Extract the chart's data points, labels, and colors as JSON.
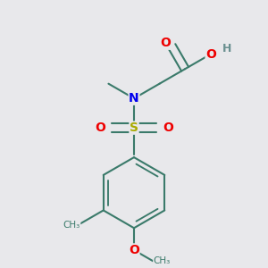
{
  "bg_color": "#e8e8eb",
  "atom_colors": {
    "C": "#3a7a6a",
    "H": "#6a9090",
    "N": "#0000ee",
    "O": "#ee0000",
    "S": "#aaaa00"
  },
  "bond_color": "#3a7a6a",
  "bond_width": 1.5
}
